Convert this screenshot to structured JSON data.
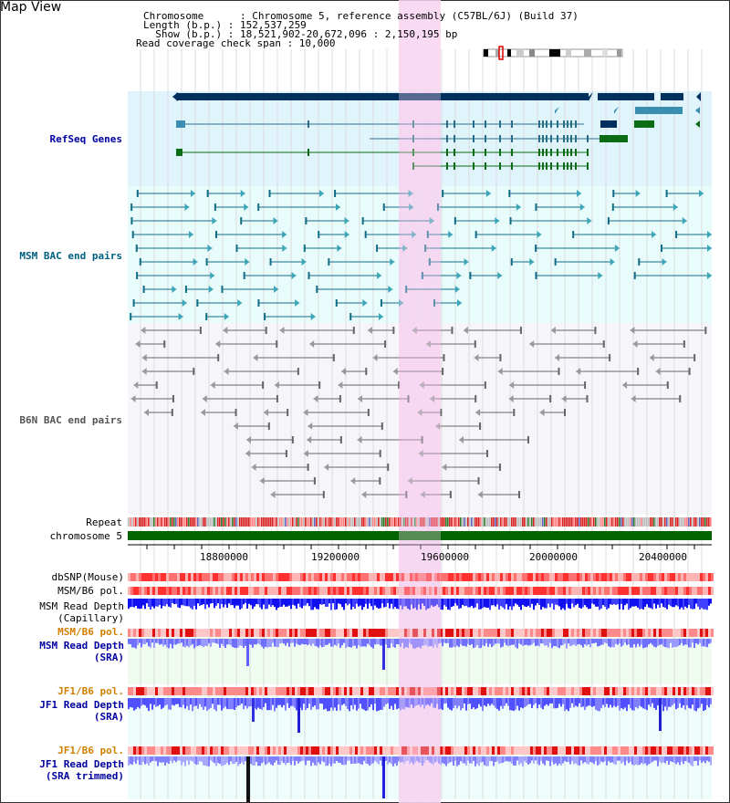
{
  "view": {
    "title": "Map View",
    "header": {
      "chromosome": "Chromosome      : Chromosome 5, reference assembly (C57BL/6J) (Build 37)",
      "length": "Length (b.p.) : 152,537,259",
      "show": "  Show (b.p.) : 18,521,902-20,672,096 : 2,150,195 bp",
      "coverage": "Read coverage check span : 10,000"
    }
  },
  "tracks": {
    "refseq_label": "RefSeq Genes",
    "msm_bac_label": "MSM BAC end pairs",
    "b6n_bac_label": "B6N BAC end pairs",
    "repeat_label": "Repeat",
    "chromosome_label": "chromosome 5",
    "dbsnp_label": "dbSNP(Mouse)",
    "msm_b6_pol_label": "MSM/B6 pol.",
    "msm_depth_cap_label": "MSM Read Depth\n(Capillary)",
    "msm_b6_pol2_label": "MSM/B6 pol.",
    "msm_depth_sra_label": "MSM Read Depth\n(SRA)",
    "jf1_b6_pol_label": "JF1/B6 pol.",
    "jf1_depth_sra_label": "JF1 Read Depth\n(SRA)",
    "jf1_b6_pol2_label": "JF1/B6 pol.",
    "jf1_depth_trim_label": "JF1 Read Depth\n(SRA trimmed)"
  },
  "axis": {
    "ticks": [
      "18800000",
      "19200000",
      "19600000",
      "20000000",
      "20400000"
    ]
  },
  "colors": {
    "refseq_bg": "#e0f4fc",
    "msm_bg": "#e8fcfc",
    "b6n_bg": "#f6f6fa",
    "highlight": "#f7d4f1",
    "navy": "#00305e",
    "teal": "#3a8fb0",
    "green": "#0a6d16",
    "chrom": "#006400",
    "msm_label": "#006080",
    "b6n_label": "#555555",
    "blue_label": "#0000a0",
    "orange_label": "#d08000"
  }
}
